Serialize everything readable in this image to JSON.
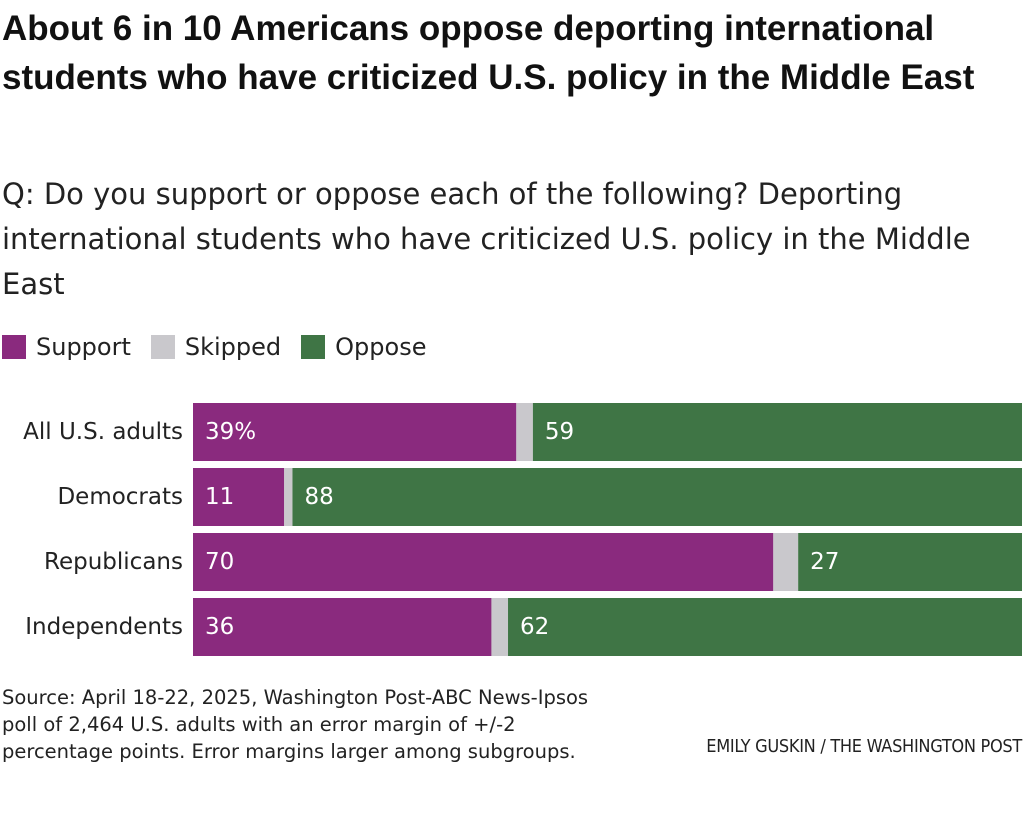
{
  "title": "About 6 in 10 Americans oppose deporting international students who have criticized U.S. policy in the Middle East",
  "subtitle": "Q: Do you support or oppose each of the following? Deporting international students who have criticized U.S. policy in the Middle East",
  "legend": [
    {
      "label": "Support",
      "color": "#8a2a7e"
    },
    {
      "label": "Skipped",
      "color": "#c9c8cc"
    },
    {
      "label": "Oppose",
      "color": "#3f7545"
    }
  ],
  "source": "Source: April 18-22, 2025, Washington Post-ABC News-Ipsos poll of 2,464 U.S. adults with an error margin of +/-2 percentage points. Error margins larger among subgroups.",
  "credit": "EMILY GUSKIN / THE WASHINGTON POST",
  "chart_data": {
    "type": "bar",
    "orientation": "horizontal",
    "stacked": true,
    "categories": [
      "All U.S. adults",
      "Democrats",
      "Republicans",
      "Independents"
    ],
    "series": [
      {
        "name": "Support",
        "values": [
          39,
          11,
          70,
          36
        ],
        "color": "#8a2a7e"
      },
      {
        "name": "Skipped",
        "values": [
          2,
          1,
          3,
          2
        ],
        "color": "#c9c8cc"
      },
      {
        "name": "Oppose",
        "values": [
          59,
          88,
          27,
          62
        ],
        "color": "#3f7545"
      }
    ],
    "data_labels": {
      "Support": [
        "39%",
        "11",
        "70",
        "36"
      ],
      "Oppose": [
        "59",
        "88",
        "27",
        "62"
      ]
    },
    "xlim": [
      0,
      100
    ],
    "legend_position": "top-left",
    "grid": false
  }
}
